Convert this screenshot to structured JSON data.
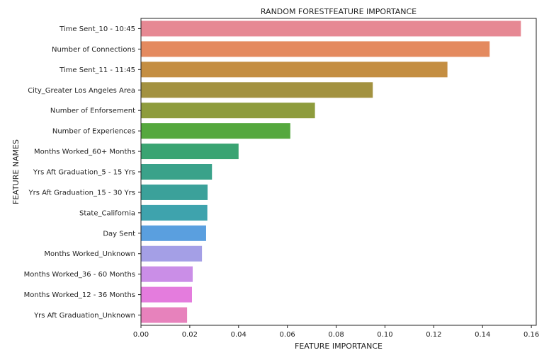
{
  "chart_data": {
    "type": "bar",
    "orientation": "horizontal",
    "title": "RANDOM FORESTFEATURE IMPORTANCE",
    "xlabel": "FEATURE IMPORTANCE",
    "ylabel": "FEATURE NAMES",
    "xlim": [
      0,
      0.162
    ],
    "xticks": [
      "0.00",
      "0.02",
      "0.04",
      "0.06",
      "0.08",
      "0.10",
      "0.12",
      "0.14",
      "0.16"
    ],
    "grid": false,
    "categories": [
      "Time Sent_10 - 10:45",
      "Number of Connections",
      "Time Sent_11 - 11:45",
      "City_Greater Los Angeles Area",
      "Number of Enforsement",
      "Number of Experiences",
      "Months Worked_60+ Months",
      "Yrs Aft Graduation_5 - 15 Yrs",
      "Yrs Aft Graduation_15 - 30 Yrs",
      "State_California",
      "Day Sent",
      "Months Worked_Unknown",
      "Months Worked_36 - 60 Months",
      "Months Worked_12 - 36 Months",
      "Yrs Aft Graduation_Unknown"
    ],
    "values": [
      0.1557,
      0.1429,
      0.1256,
      0.095,
      0.0713,
      0.0612,
      0.04,
      0.0291,
      0.0273,
      0.0272,
      0.0267,
      0.025,
      0.0212,
      0.0209,
      0.0189
    ],
    "colors": [
      "#e68893",
      "#e48a5f",
      "#c48e42",
      "#a39240",
      "#8e9c3d",
      "#55a83e",
      "#3aa472",
      "#3aa28a",
      "#3ba19a",
      "#3ea3ad",
      "#5a9fdf",
      "#a49fe6",
      "#ca8ee7",
      "#e47cdd",
      "#e782bc"
    ]
  }
}
